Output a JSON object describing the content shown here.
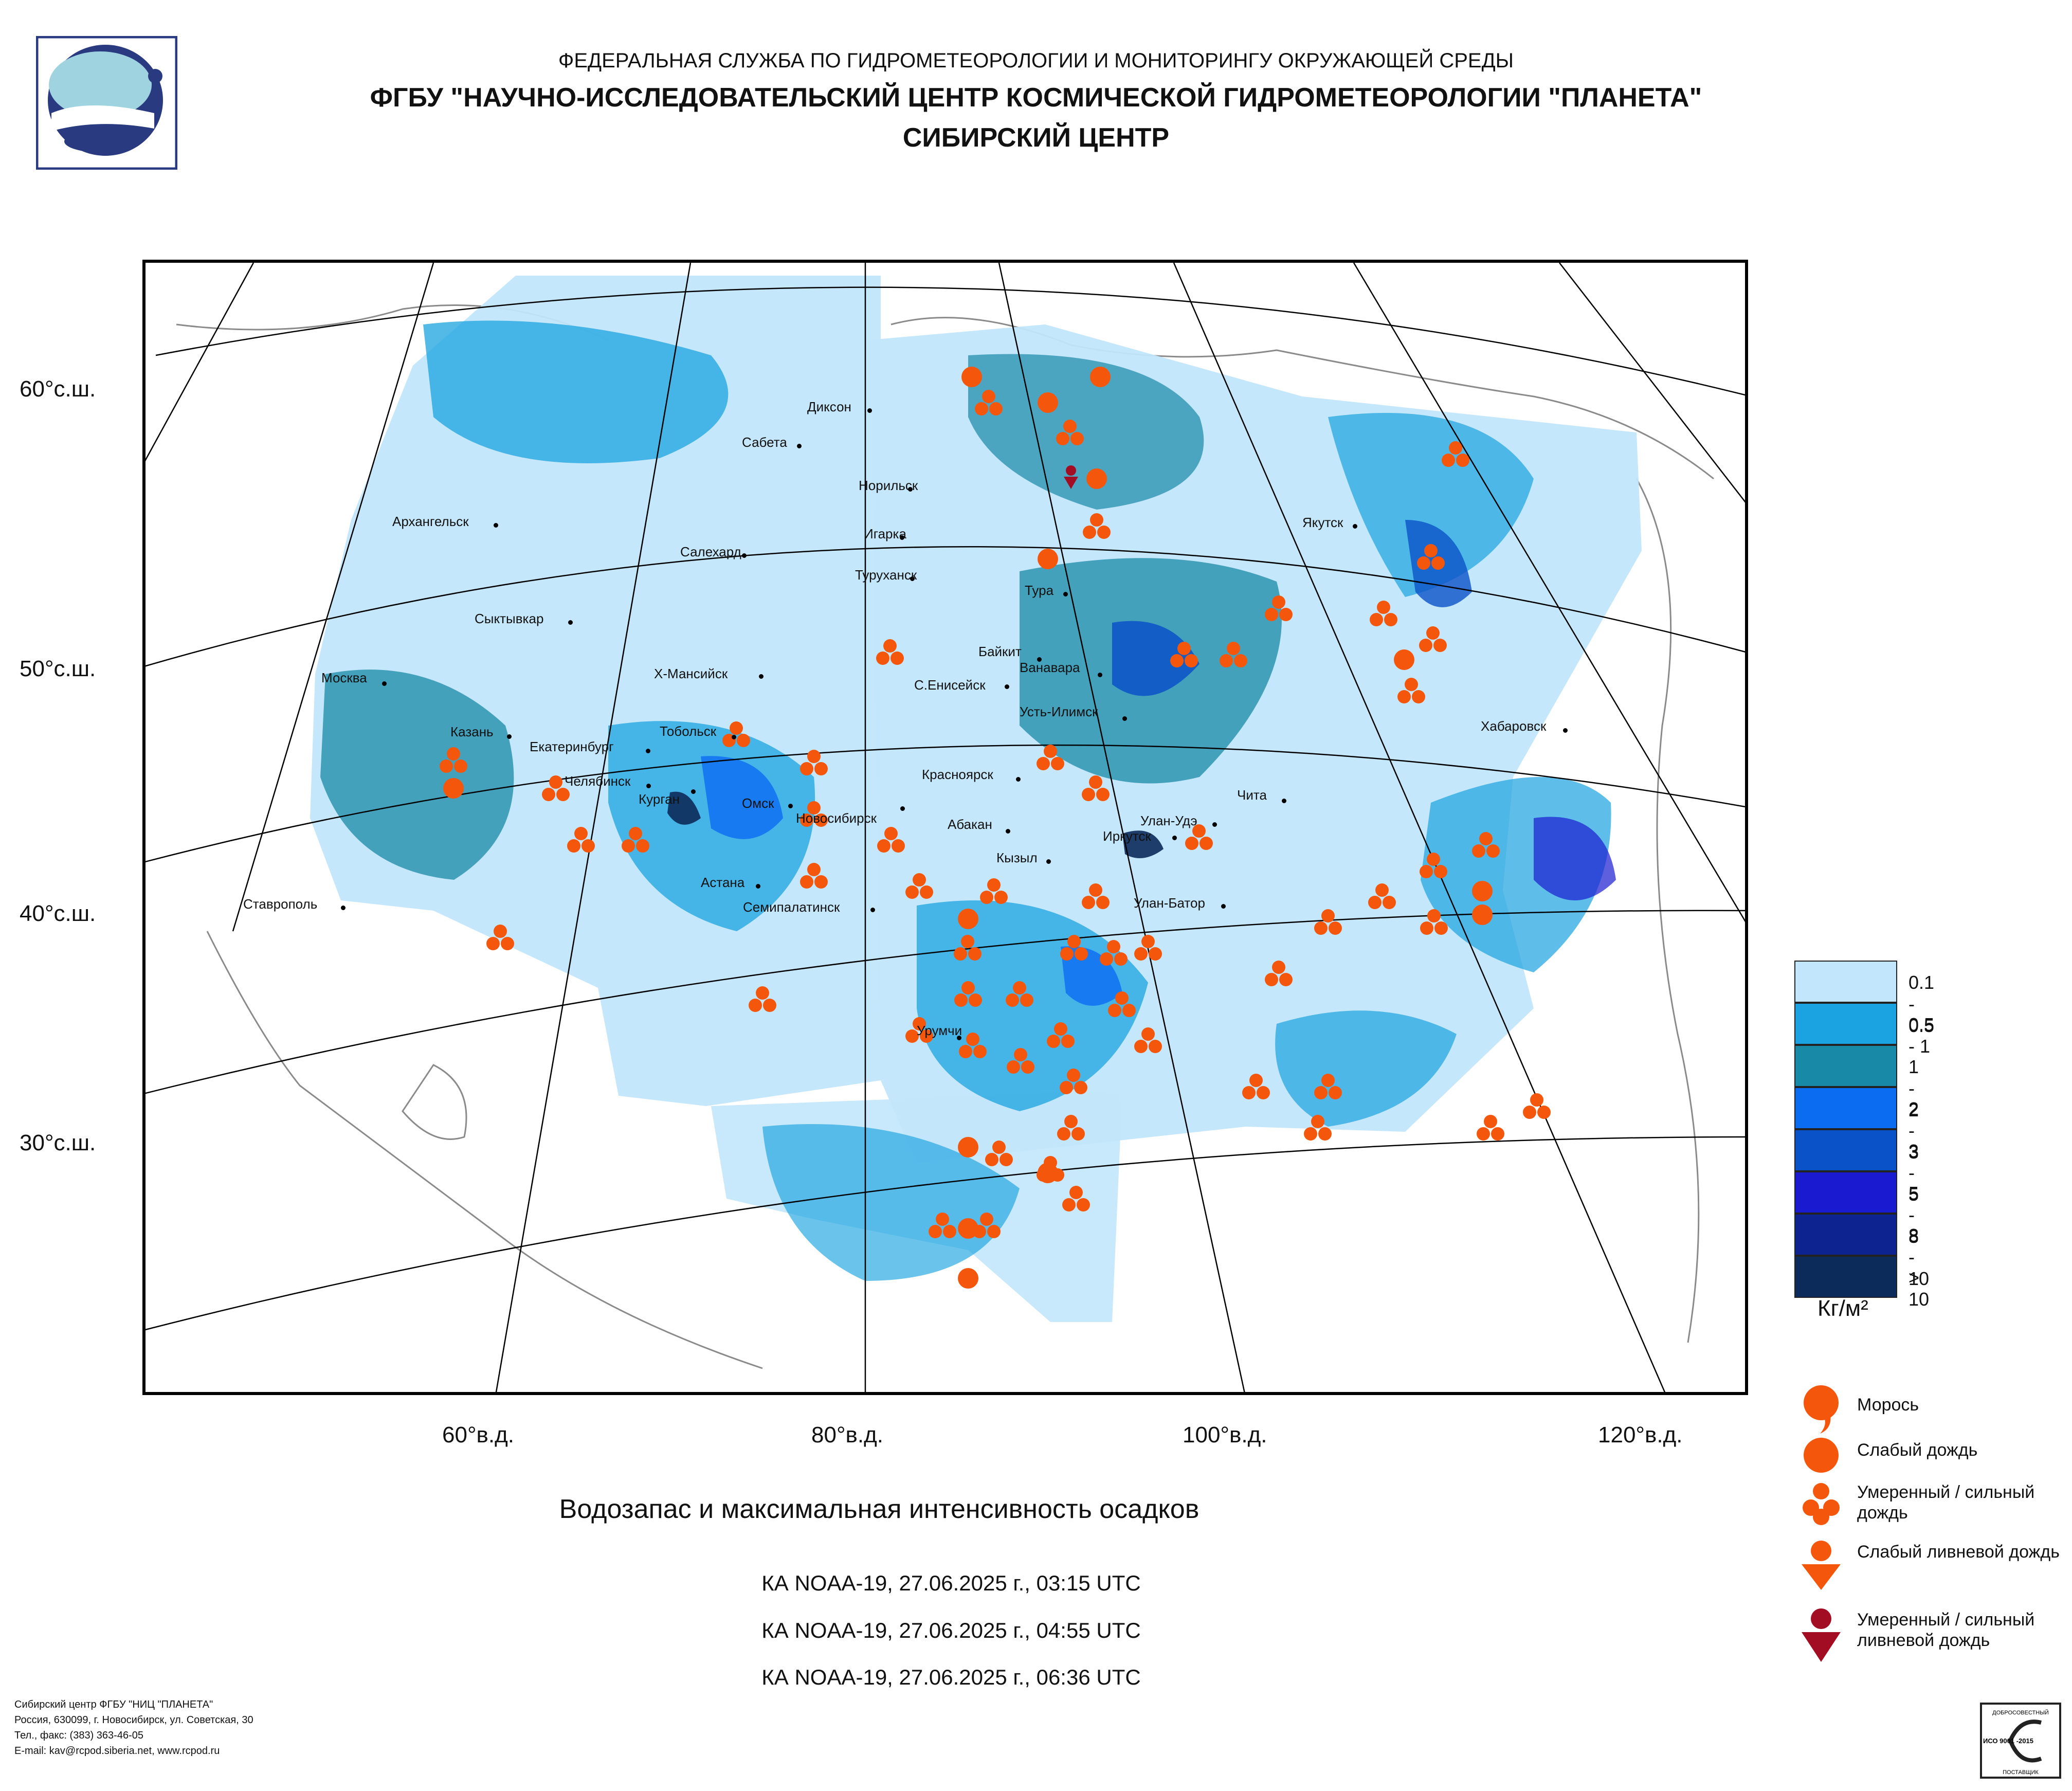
{
  "header": {
    "line1": "ФЕДЕРАЛЬНАЯ СЛУЖБА ПО ГИДРОМЕТЕОРОЛОГИИ И МОНИТОРИНГУ ОКРУЖАЮЩЕЙ СРЕДЫ",
    "line2": "ФГБУ \"НАУЧНО-ИССЛЕДОВАТЕЛЬСКИЙ ЦЕНТР КОСМИЧЕСКОЙ ГИДРОМЕТЕОРОЛОГИИ \"ПЛАНЕТА\"",
    "line3": "СИБИРСКИЙ ЦЕНТР"
  },
  "map": {
    "lat_labels": [
      "60°с.ш.",
      "50°с.ш.",
      "40°с.ш.",
      "30°с.ш."
    ],
    "lon_labels": [
      "60°в.д.",
      "80°в.д.",
      "100°в.д.",
      "120°в.д."
    ],
    "cities": [
      "Диксон",
      "Сабета",
      "Норильск",
      "Игарка",
      "Туруханск",
      "Архангельск",
      "Салехард",
      "Тура",
      "Якутск",
      "Сыктывкар",
      "Байкит",
      "Ванавара",
      "Москва",
      "Х-Мансийск",
      "С.Енисейск",
      "Усть-Илимск",
      "Хабаровск",
      "Казань",
      "Екатеринбург",
      "Тобольск",
      "Челябинск",
      "Курган",
      "Красноярск",
      "Чита",
      "Омск",
      "Новосибирск",
      "Абакан",
      "Улан-Удэ",
      "Иркутск",
      "Кызыл",
      "Астана",
      "Ставрополь",
      "Семипалатинск",
      "Улан-Батор",
      "Урумчи"
    ]
  },
  "scale_legend": {
    "items": [
      {
        "label": "0.1 - 0.5",
        "color": "#c2e6fb"
      },
      {
        "label": "0.5 - 1",
        "color": "#1aa3e0"
      },
      {
        "label": "1 - 2",
        "color": "#1889a6"
      },
      {
        "label": "2 - 3",
        "color": "#0b6cf2"
      },
      {
        "label": "3 - 5",
        "color": "#0a52c8"
      },
      {
        "label": "5 - 8",
        "color": "#1a1bd0"
      },
      {
        "label": "8 - 10",
        "color": "#0d2390"
      },
      {
        "label": "> 10",
        "color": "#0c2a5a"
      }
    ],
    "unit": "Кг/м²"
  },
  "precip_legend": {
    "items": [
      {
        "label": "Морось",
        "symbol": "drizzle-comma-icon",
        "color": "#f4570c"
      },
      {
        "label": "Слабый дождь",
        "symbol": "large-dot-icon",
        "color": "#f4570c"
      },
      {
        "label": "Умеренный / сильный дождь",
        "symbol": "three-dots-icon",
        "color": "#f4570c"
      },
      {
        "label": "Слабый ливневой дождь",
        "symbol": "dot-over-triangle-icon",
        "color": "#f4570c"
      },
      {
        "label": "Умеренный / сильный ливневой дождь",
        "symbol": "dot-over-triangle-icon",
        "color": "#a30d23"
      }
    ]
  },
  "caption": "Водозапас и максимальная интенсивность осадков",
  "satellite_passes": [
    "КА NOAA-19, 27.06.2025 г., 03:15 UTC",
    "КА NOAA-19, 27.06.2025 г., 04:55 UTC",
    "КА NOAA-19, 27.06.2025 г., 06:36 UTC"
  ],
  "footer": {
    "line1": "Сибирский центр ФГБУ \"НИЦ \"ПЛАНЕТА\"",
    "line2": "Россия, 630099, г. Новосибирск, ул. Советская, 30",
    "line3": "Тел., факс: (383) 363-46-05",
    "line4": "E-mail: kav@rcpod.siberia.net, www.rcpod.ru"
  },
  "iso_badge": {
    "top": "ДОБРОСОВЕСТНЫЙ",
    "code": "ИСО 9001 -2015",
    "bottom": "ПОСТАВЩИК"
  }
}
